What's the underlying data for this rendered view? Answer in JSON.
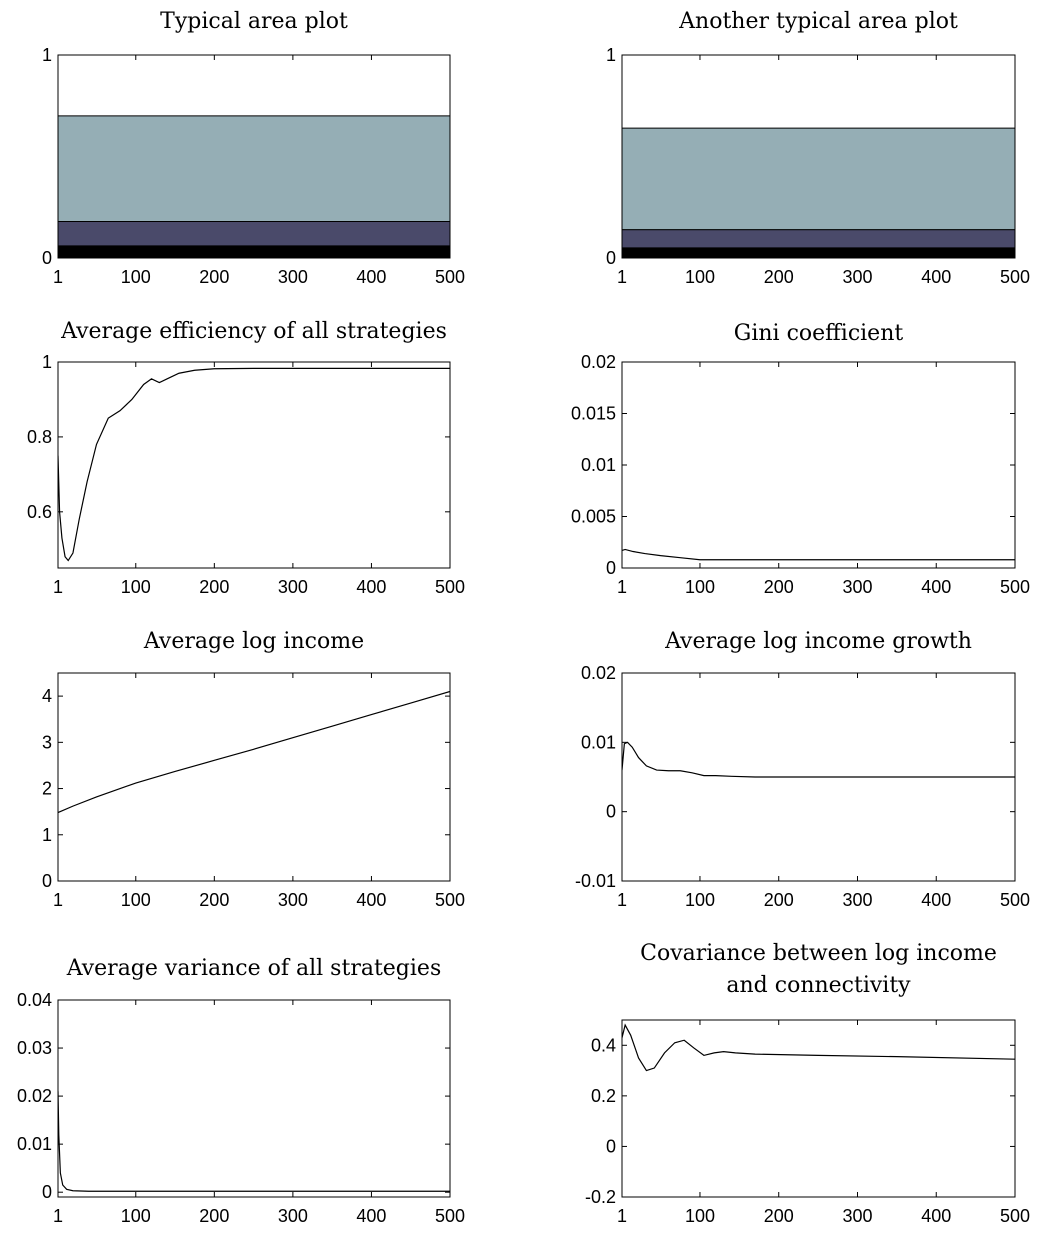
{
  "chart_data": [
    {
      "type": "area",
      "title": "Typical area plot",
      "xlim": [
        1,
        500
      ],
      "ylim": [
        0,
        1
      ],
      "xticks": [
        "1",
        "100",
        "200",
        "300",
        "400",
        "500"
      ],
      "yticks": [
        "0",
        "1"
      ],
      "x": [
        1,
        500
      ],
      "series": [
        {
          "values": [
            0.06,
            0.06
          ],
          "color": "#000000"
        },
        {
          "values": [
            0.12,
            0.12
          ],
          "color": "#4a4a6a"
        },
        {
          "values": [
            0.52,
            0.52
          ],
          "color": "#95aeb5"
        }
      ]
    },
    {
      "type": "area",
      "title": "Another typical area plot",
      "xlim": [
        1,
        500
      ],
      "ylim": [
        0,
        1
      ],
      "xticks": [
        "1",
        "100",
        "200",
        "300",
        "400",
        "500"
      ],
      "yticks": [
        "0",
        "1"
      ],
      "x": [
        1,
        500
      ],
      "series": [
        {
          "values": [
            0.05,
            0.05
          ],
          "color": "#000000"
        },
        {
          "values": [
            0.09,
            0.09
          ],
          "color": "#4a4a6a"
        },
        {
          "values": [
            0.5,
            0.5
          ],
          "color": "#95aeb5"
        }
      ]
    },
    {
      "type": "line",
      "title": "Average efficiency of all strategies",
      "xlim": [
        1,
        500
      ],
      "ylim": [
        0.45,
        1.0
      ],
      "xticks": [
        "1",
        "100",
        "200",
        "300",
        "400",
        "500"
      ],
      "yticks": [
        "0.6",
        "0.8",
        "1"
      ],
      "x": [
        1,
        3,
        6,
        10,
        14,
        20,
        28,
        38,
        50,
        65,
        80,
        95,
        110,
        120,
        130,
        140,
        155,
        175,
        200,
        250,
        300,
        400,
        500
      ],
      "values": [
        0.75,
        0.6,
        0.53,
        0.48,
        0.47,
        0.49,
        0.58,
        0.68,
        0.78,
        0.85,
        0.87,
        0.9,
        0.94,
        0.955,
        0.945,
        0.955,
        0.97,
        0.978,
        0.982,
        0.983,
        0.983,
        0.983,
        0.983
      ]
    },
    {
      "type": "line",
      "title": "Gini coefficient",
      "xlim": [
        1,
        500
      ],
      "ylim": [
        0,
        0.02
      ],
      "xticks": [
        "1",
        "100",
        "200",
        "300",
        "400",
        "500"
      ],
      "yticks": [
        "0",
        "0.005",
        "0.01",
        "0.015",
        "0.02"
      ],
      "x": [
        1,
        5,
        15,
        30,
        50,
        75,
        100,
        120,
        150,
        200,
        300,
        400,
        500
      ],
      "values": [
        0.0017,
        0.0018,
        0.0016,
        0.0014,
        0.0012,
        0.001,
        0.0008,
        0.0008,
        0.0008,
        0.0008,
        0.0008,
        0.0008,
        0.0008
      ]
    },
    {
      "type": "line",
      "title": "Average log income",
      "xlim": [
        1,
        500
      ],
      "ylim": [
        0,
        4.5
      ],
      "xticks": [
        "1",
        "100",
        "200",
        "300",
        "400",
        "500"
      ],
      "yticks": [
        "0",
        "1",
        "2",
        "3",
        "4"
      ],
      "x": [
        1,
        20,
        50,
        100,
        150,
        200,
        250,
        300,
        350,
        400,
        450,
        500
      ],
      "values": [
        1.48,
        1.62,
        1.82,
        2.12,
        2.37,
        2.61,
        2.85,
        3.1,
        3.35,
        3.6,
        3.85,
        4.1
      ]
    },
    {
      "type": "line",
      "title": "Average log income growth",
      "xlim": [
        1,
        500
      ],
      "ylim": [
        -0.01,
        0.02
      ],
      "xticks": [
        "1",
        "100",
        "200",
        "300",
        "400",
        "500"
      ],
      "yticks": [
        "-0.01",
        "0",
        "0.01",
        "0.02"
      ],
      "x": [
        1,
        4,
        8,
        14,
        22,
        32,
        45,
        60,
        75,
        90,
        105,
        120,
        140,
        170,
        200,
        300,
        400,
        500
      ],
      "values": [
        0.006,
        0.0098,
        0.01,
        0.0093,
        0.0078,
        0.0066,
        0.006,
        0.0059,
        0.0059,
        0.0056,
        0.0052,
        0.0052,
        0.0051,
        0.005,
        0.005,
        0.005,
        0.005,
        0.005
      ]
    },
    {
      "type": "line",
      "title": "Average variance of all strategies",
      "xlim": [
        1,
        500
      ],
      "ylim": [
        -0.001,
        0.04
      ],
      "xticks": [
        "1",
        "100",
        "200",
        "300",
        "400",
        "500"
      ],
      "yticks": [
        "0",
        "0.01",
        "0.02",
        "0.03",
        "0.04"
      ],
      "x": [
        1,
        2,
        4,
        7,
        12,
        20,
        40,
        100,
        200,
        300,
        400,
        500
      ],
      "values": [
        0.021,
        0.012,
        0.004,
        0.0015,
        0.0006,
        0.0003,
        0.0002,
        0.0002,
        0.0002,
        0.0002,
        0.0002,
        0.0002
      ]
    },
    {
      "type": "line",
      "title": [
        "Covariance between log income",
        "and connectivity"
      ],
      "xlim": [
        1,
        500
      ],
      "ylim": [
        -0.2,
        0.5
      ],
      "xticks": [
        "1",
        "100",
        "200",
        "300",
        "400",
        "500"
      ],
      "yticks": [
        "-0.2",
        "0",
        "0.2",
        "0.4"
      ],
      "x": [
        1,
        5,
        12,
        22,
        32,
        42,
        55,
        68,
        80,
        92,
        105,
        118,
        130,
        145,
        170,
        250,
        350,
        500
      ],
      "values": [
        0.43,
        0.48,
        0.44,
        0.35,
        0.3,
        0.31,
        0.37,
        0.41,
        0.42,
        0.39,
        0.36,
        0.37,
        0.375,
        0.37,
        0.365,
        0.36,
        0.355,
        0.345
      ]
    }
  ]
}
